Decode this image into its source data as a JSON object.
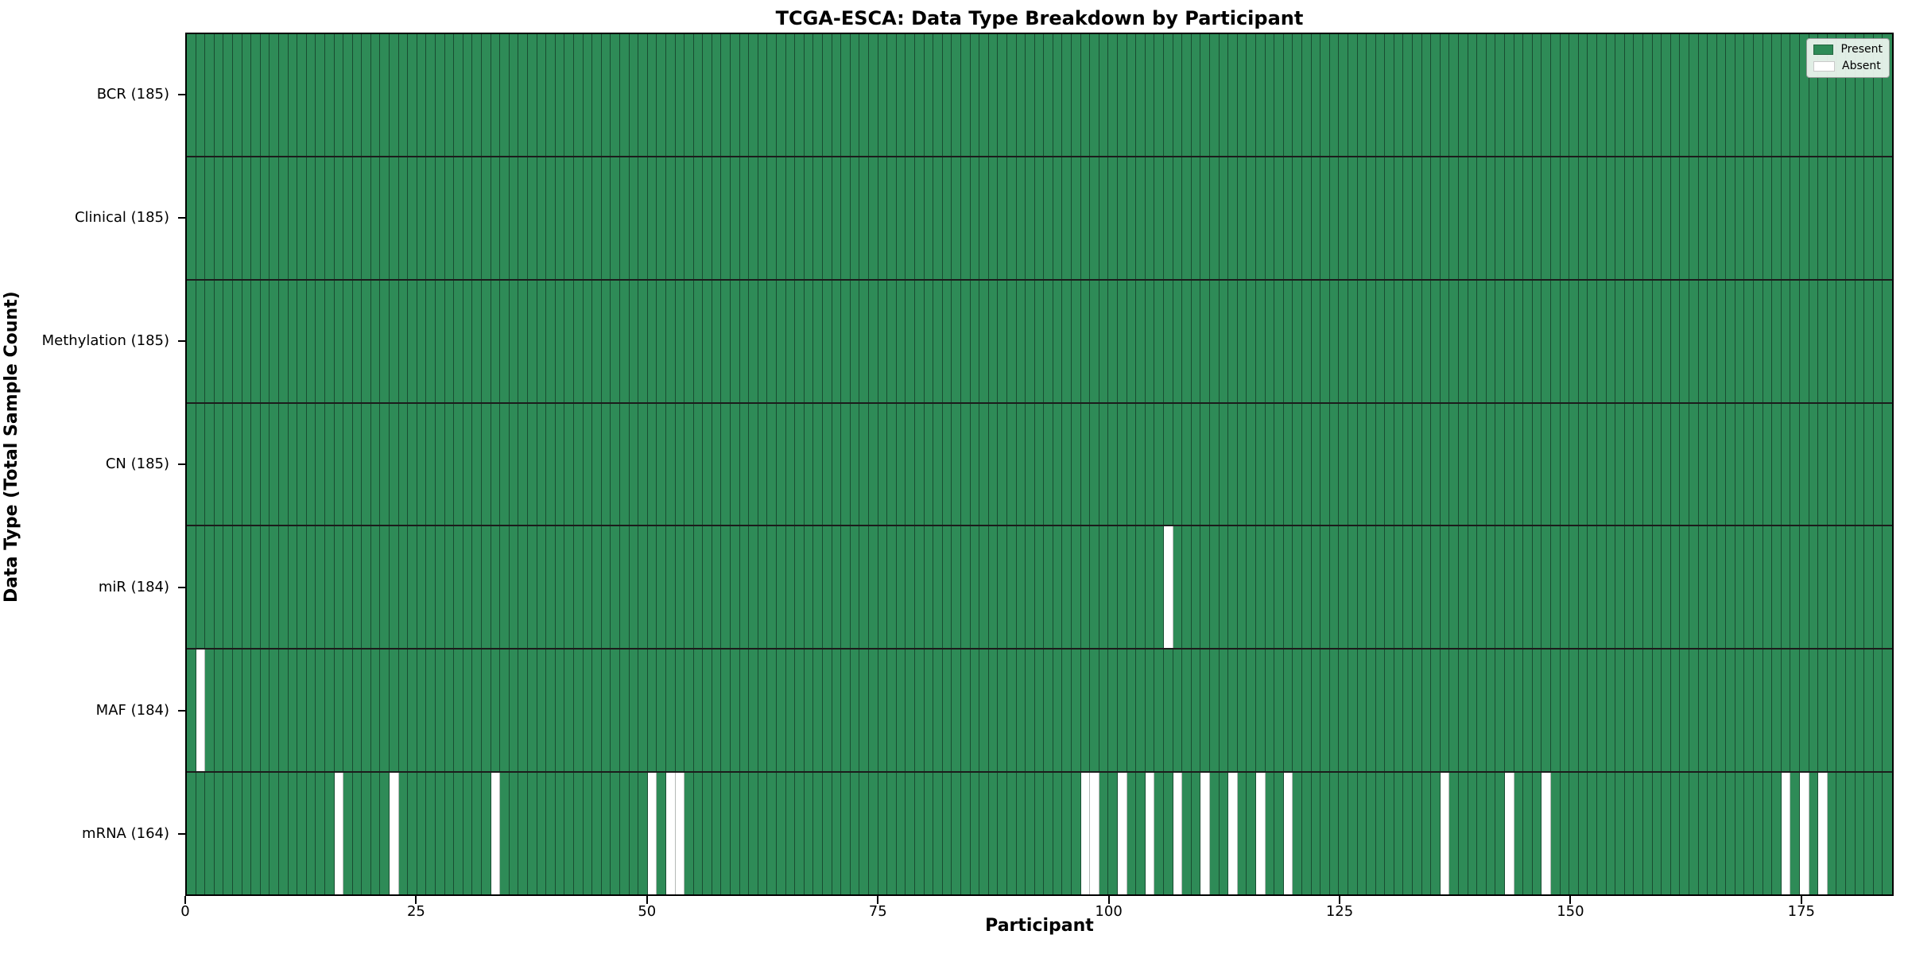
{
  "chart_data": {
    "type": "heatmap",
    "title": "TCGA-ESCA: Data Type Breakdown by Participant",
    "xlabel": "Participant",
    "ylabel": "Data Type (Total Sample Count)",
    "x_ticks": [
      0,
      25,
      50,
      75,
      100,
      125,
      150,
      175
    ],
    "x_range": [
      0,
      185
    ],
    "n_participants": 185,
    "grid": "cell-edges-on",
    "legend_position": "upper-right",
    "legend": [
      {
        "label": "Present",
        "color": "#2e8b57"
      },
      {
        "label": "Absent",
        "color": "#ffffff"
      }
    ],
    "rows": [
      {
        "label": "BCR (185)",
        "name": "BCR",
        "present_count": 185,
        "absent_participants": []
      },
      {
        "label": "Clinical (185)",
        "name": "Clinical",
        "present_count": 185,
        "absent_participants": []
      },
      {
        "label": "Methylation (185)",
        "name": "Methylation",
        "present_count": 185,
        "absent_participants": []
      },
      {
        "label": "CN (185)",
        "name": "CN",
        "present_count": 185,
        "absent_participants": []
      },
      {
        "label": "miR (184)",
        "name": "miR",
        "present_count": 184,
        "absent_participants": [
          106
        ]
      },
      {
        "label": "MAF (184)",
        "name": "MAF",
        "present_count": 184,
        "absent_participants": [
          1
        ]
      },
      {
        "label": "mRNA (164)",
        "name": "mRNA",
        "present_count": 164,
        "absent_participants": [
          16,
          22,
          33,
          50,
          52,
          53,
          97,
          98,
          101,
          104,
          107,
          110,
          113,
          116,
          119,
          136,
          143,
          147,
          173,
          175,
          177
        ]
      }
    ],
    "colors": {
      "present": "#2e8b57",
      "absent": "#ffffff",
      "cell_edge": "#14251c",
      "row_divider": "#1c1c1c",
      "axes_spine": "#000000",
      "background": "#ffffff"
    }
  }
}
